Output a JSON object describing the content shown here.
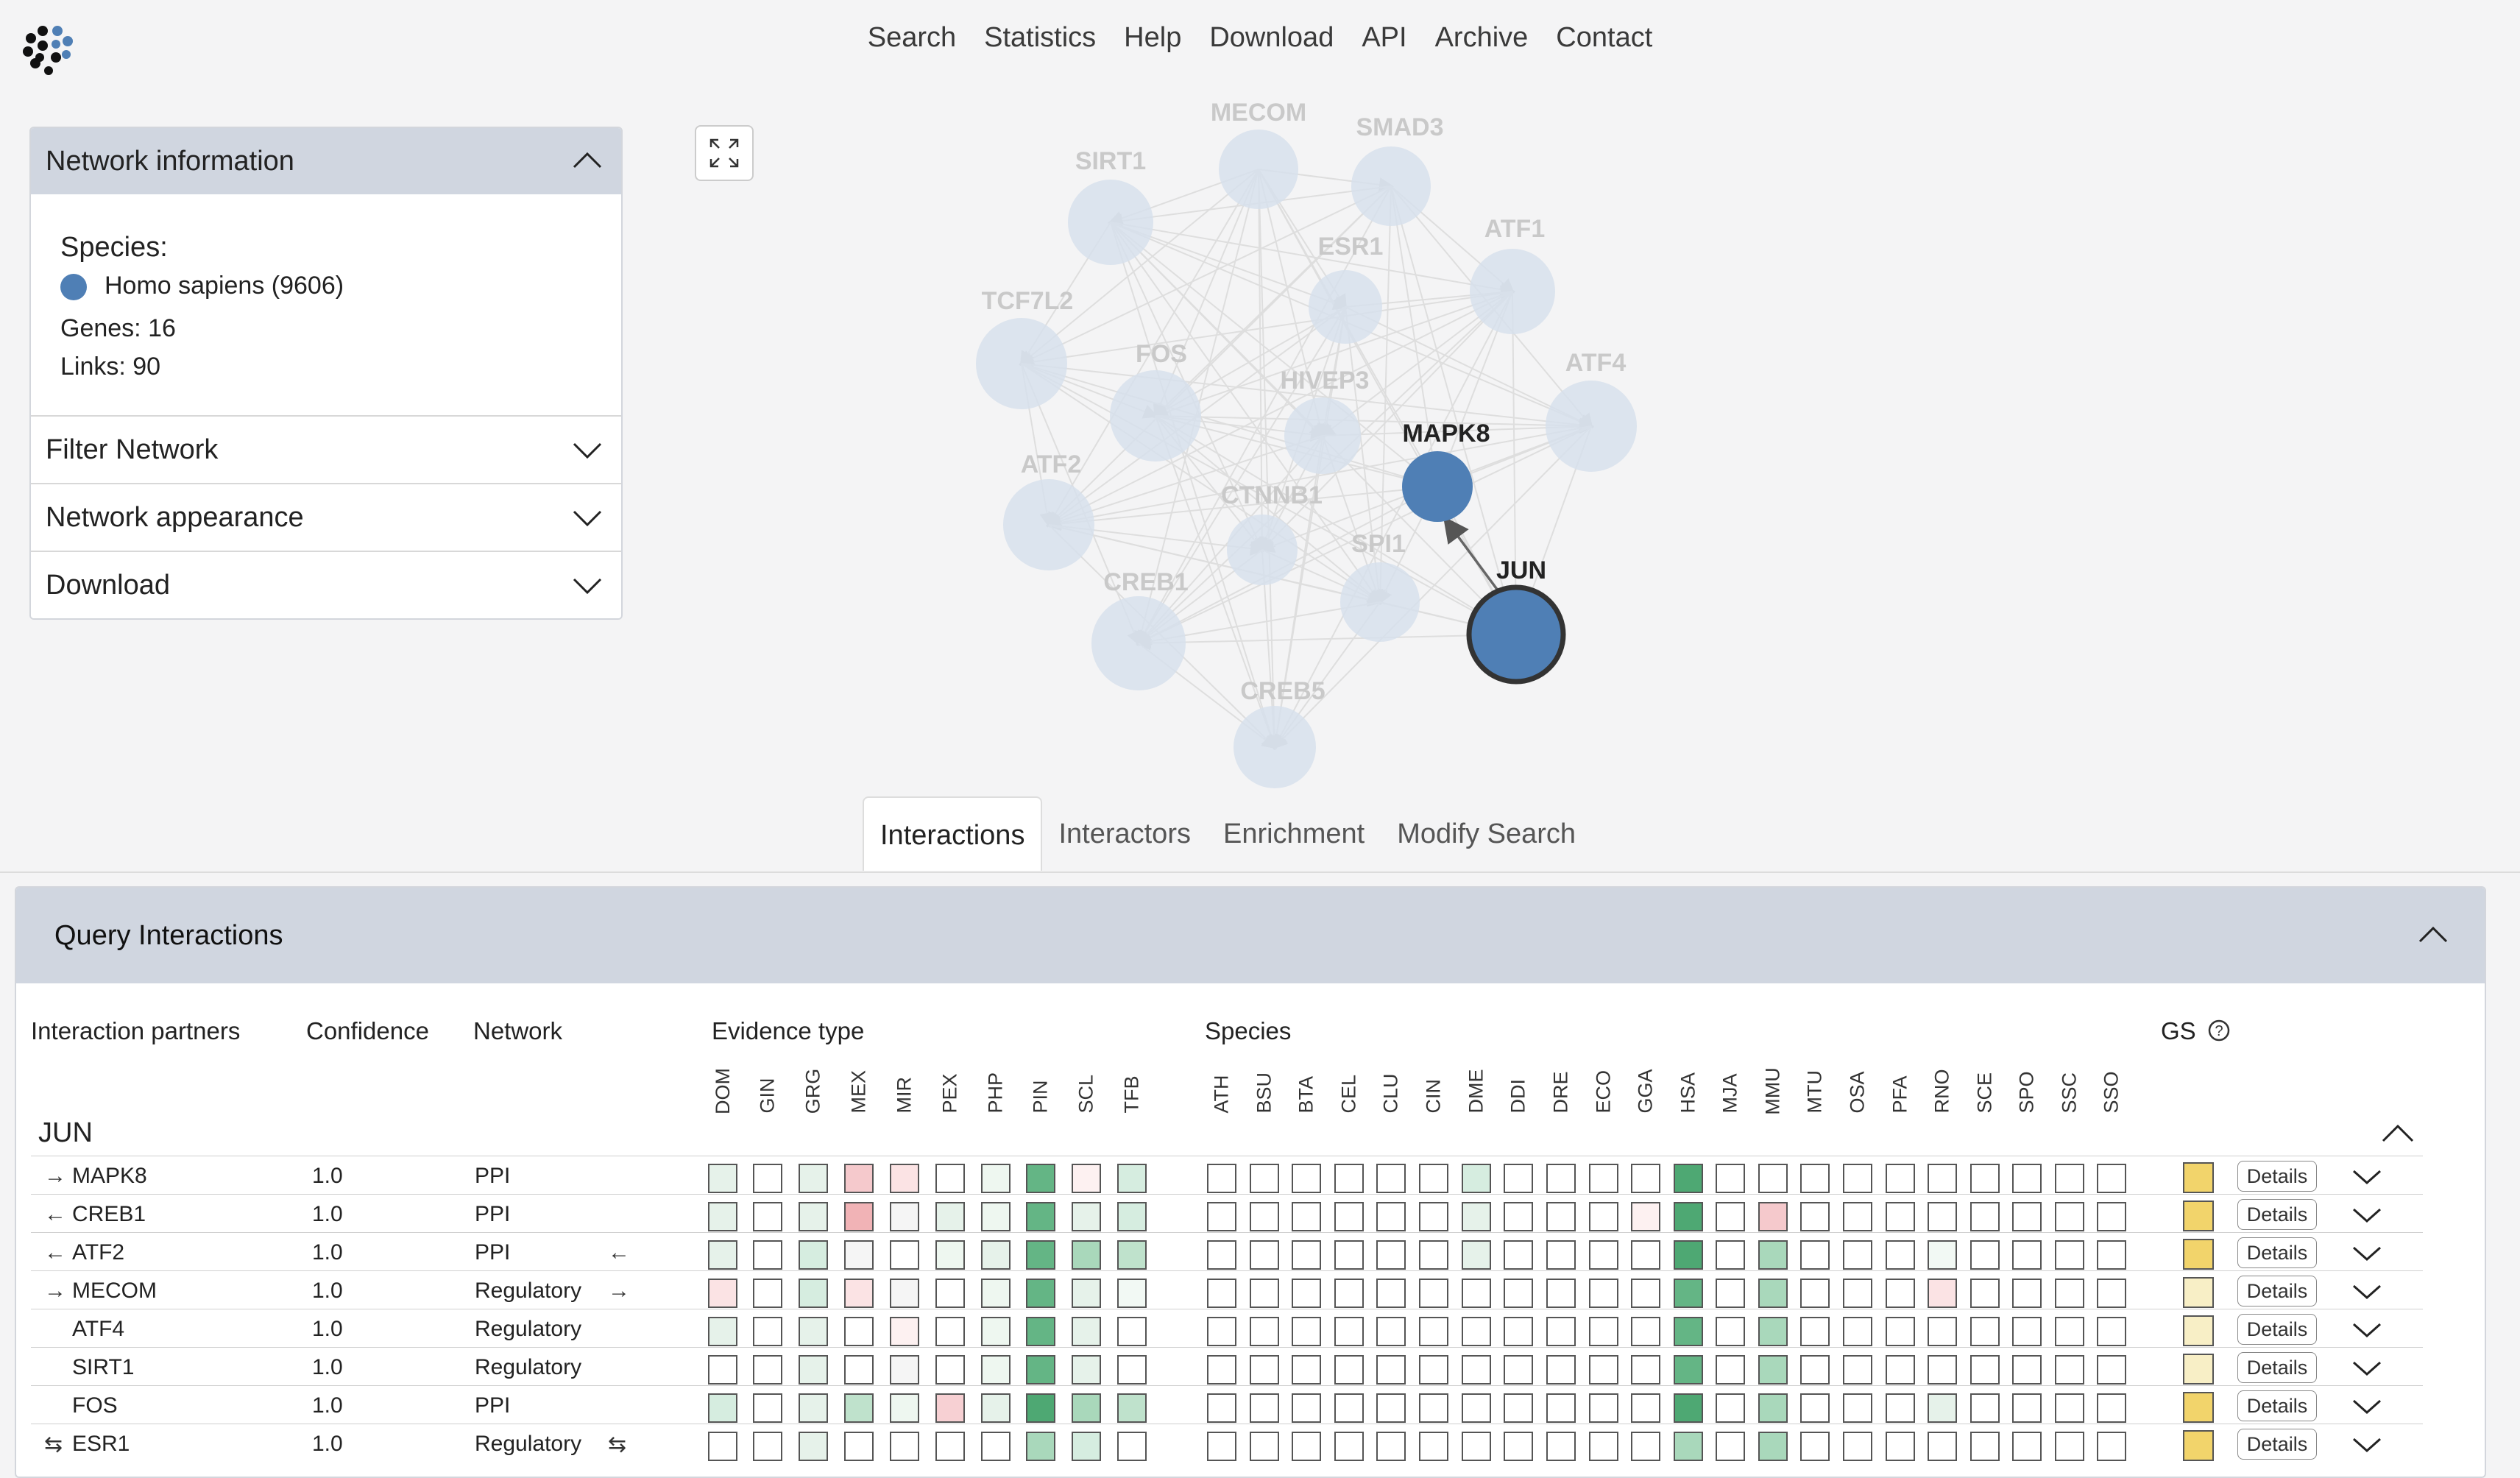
{
  "nav": [
    "Search",
    "Statistics",
    "Help",
    "Download",
    "API",
    "Archive",
    "Contact"
  ],
  "left_panel": {
    "network_info_title": "Network information",
    "species_label": "Species:",
    "species_value": "Homo sapiens (9606)",
    "genes": "Genes: 16",
    "links": "Links: 90",
    "filter_title": "Filter Network",
    "appearance_title": "Network appearance",
    "download_title": "Download"
  },
  "graph": {
    "nodes": [
      "MECOM",
      "SMAD3",
      "SIRT1",
      "ESR1",
      "ATF1",
      "TCF7L2",
      "FOS",
      "HIVEP3",
      "ATF4",
      "MAPK8",
      "ATF2",
      "CTNNB1",
      "SPI1",
      "JUN",
      "CREB1",
      "CREB5"
    ],
    "highlight": [
      "MAPK8",
      "JUN"
    ]
  },
  "tabs": [
    "Interactions",
    "Interactors",
    "Enrichment",
    "Modify Search"
  ],
  "query": {
    "title": "Query Interactions",
    "col_partners": "Interaction partners",
    "col_confidence": "Confidence",
    "col_network": "Network",
    "col_evidence": "Evidence type",
    "col_species": "Species",
    "col_gs": "GS",
    "evidence_types": [
      "DOM",
      "GIN",
      "GRG",
      "MEX",
      "MIR",
      "PEX",
      "PHP",
      "PIN",
      "SCL",
      "TFB"
    ],
    "species": [
      "ATH",
      "BSU",
      "BTA",
      "CEL",
      "CLU",
      "CIN",
      "DME",
      "DDI",
      "DRE",
      "ECO",
      "GGA",
      "HSA",
      "MJA",
      "MMU",
      "MTU",
      "OSA",
      "PFA",
      "RNO",
      "SCE",
      "SPO",
      "SSC",
      "SSO"
    ],
    "group": "JUN",
    "details_label": "Details",
    "rows": [
      {
        "dir": "→",
        "partner": "MAPK8",
        "confidence": "1.0",
        "network": "PPI",
        "right": ""
      },
      {
        "dir": "←",
        "partner": "CREB1",
        "confidence": "1.0",
        "network": "PPI",
        "right": ""
      },
      {
        "dir": "←",
        "partner": "ATF2",
        "confidence": "1.0",
        "network": "PPI",
        "right": "←"
      },
      {
        "dir": "→",
        "partner": "MECOM",
        "confidence": "1.0",
        "network": "Regulatory",
        "right": "→"
      },
      {
        "dir": "",
        "partner": "ATF4",
        "confidence": "1.0",
        "network": "Regulatory",
        "right": ""
      },
      {
        "dir": "",
        "partner": "SIRT1",
        "confidence": "1.0",
        "network": "Regulatory",
        "right": ""
      },
      {
        "dir": "",
        "partner": "FOS",
        "confidence": "1.0",
        "network": "PPI",
        "right": ""
      },
      {
        "dir": "⇆",
        "partner": "ESR1",
        "confidence": "1.0",
        "network": "Regulatory",
        "right": "⇆"
      }
    ]
  },
  "colors": {
    "node_blue": "#4f7fb5",
    "node_faded": "#d7e1ec",
    "panel_header": "#d0d6e0",
    "gs_strong": "#f2d46b",
    "gs_light": "#f8efc6"
  },
  "evidence_matrix": [
    [
      "#e6f2ea",
      "#fff",
      "#e6f2ea",
      "#f5c9cc",
      "#fbe3e4",
      "#fff",
      "#eef7f0",
      "#64b585",
      "#fdf1f1",
      "#d6ede0"
    ],
    [
      "#e6f2ea",
      "#fff",
      "#e6f2ea",
      "#f1b3b6",
      "#f5f5f5",
      "#e6f2ea",
      "#eef7f0",
      "#64b585",
      "#e6f2ea",
      "#d6ede0"
    ],
    [
      "#e6f2ea",
      "#fff",
      "#d6ede0",
      "#f5f5f5",
      "#fff",
      "#eef7f0",
      "#e6f2ea",
      "#64b585",
      "#a9d8bb",
      "#bfe2cc"
    ],
    [
      "#fbe3e4",
      "#fff",
      "#d6ede0",
      "#fbe3e4",
      "#f5f5f5",
      "#fff",
      "#eef7f0",
      "#64b585",
      "#e6f2ea",
      "#f2f9f4"
    ],
    [
      "#e6f2ea",
      "#fff",
      "#e6f2ea",
      "#fff",
      "#fdf1f1",
      "#fff",
      "#eef7f0",
      "#64b585",
      "#e6f2ea",
      "#fff"
    ],
    [
      "#fff",
      "#fff",
      "#e6f2ea",
      "#fff",
      "#f5f5f5",
      "#fff",
      "#eef7f0",
      "#64b585",
      "#e6f2ea",
      "#fff"
    ],
    [
      "#d6ede0",
      "#fff",
      "#e6f2ea",
      "#bfe2cc",
      "#eef7f0",
      "#f7d0d3",
      "#e6f2ea",
      "#4ea873",
      "#a9d8bb",
      "#bfe2cc"
    ],
    [
      "#fff",
      "#fff",
      "#e6f2ea",
      "#fff",
      "#fff",
      "#fff",
      "#fff",
      "#a9d8bb",
      "#d6ede0",
      "#fff"
    ]
  ],
  "species_matrix": [
    {
      "DME": "#d6ede0",
      "HSA": "#4ea873"
    },
    {
      "DME": "#e6f2ea",
      "GGA": "#fdf1f1",
      "HSA": "#4ea873",
      "MMU": "#f5c9cc"
    },
    {
      "DME": "#e6f2ea",
      "HSA": "#4ea873",
      "MMU": "#a9d8bb",
      "RNO": "#f2f9f4"
    },
    {
      "HSA": "#64b585",
      "MMU": "#a9d8bb",
      "RNO": "#fbe3e4"
    },
    {
      "HSA": "#64b585",
      "MMU": "#a9d8bb"
    },
    {
      "HSA": "#64b585",
      "MMU": "#a9d8bb"
    },
    {
      "HSA": "#4ea873",
      "MMU": "#a9d8bb",
      "RNO": "#e6f2ea"
    },
    {
      "HSA": "#a9d8bb",
      "MMU": "#a9d8bb"
    }
  ],
  "gs_colors": [
    "#f2d46b",
    "#f2d46b",
    "#f2d46b",
    "#f8efc6",
    "#f8efc6",
    "#f8efc6",
    "#f2d46b",
    "#f2d46b"
  ]
}
